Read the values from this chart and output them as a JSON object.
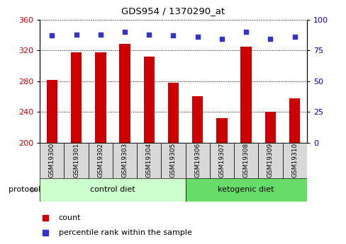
{
  "title": "GDS954 / 1370290_at",
  "samples": [
    "GSM19300",
    "GSM19301",
    "GSM19302",
    "GSM19303",
    "GSM19304",
    "GSM19305",
    "GSM19306",
    "GSM19307",
    "GSM19308",
    "GSM19309",
    "GSM19310"
  ],
  "counts": [
    282,
    317,
    317,
    328,
    312,
    278,
    260,
    232,
    325,
    240,
    258
  ],
  "percentile_ranks": [
    87,
    88,
    88,
    90,
    88,
    87,
    86,
    84,
    90,
    84,
    86
  ],
  "ylim_left": [
    200,
    360
  ],
  "ylim_right": [
    0,
    100
  ],
  "yticks_left": [
    200,
    240,
    280,
    320,
    360
  ],
  "yticks_right": [
    0,
    25,
    50,
    75,
    100
  ],
  "bar_color": "#cc0000",
  "dot_color": "#3333cc",
  "grid_color": "#000000",
  "plot_bg": "#ffffff",
  "n_control": 6,
  "n_keto": 5,
  "control_label": "control diet",
  "ketogenic_label": "ketogenic diet",
  "protocol_label": "protocol",
  "legend_count": "count",
  "legend_percentile": "percentile rank within the sample",
  "tick_label_color_left": "#cc0000",
  "tick_label_color_right": "#0000cc",
  "title_color": "#000000",
  "sample_box_color": "#d8d8d8",
  "control_box_color": "#ccffcc",
  "keto_box_color": "#66dd66",
  "arrow_color": "#999999"
}
